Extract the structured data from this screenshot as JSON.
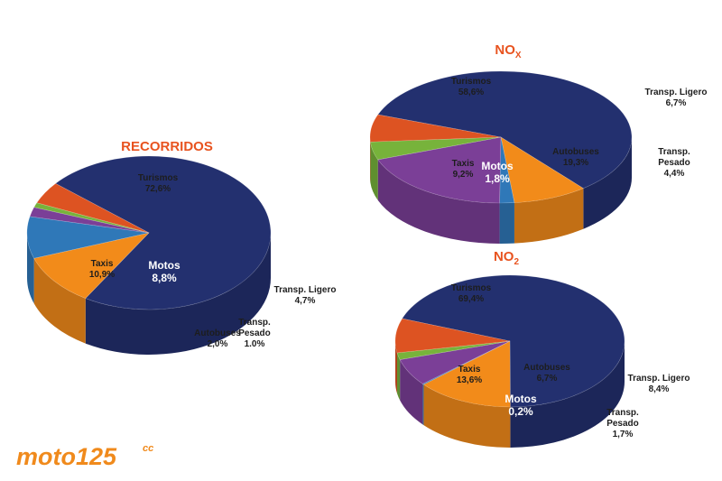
{
  "colors": {
    "Turismos": "#23306f",
    "Taxis": "#f28b1a",
    "Motos": "#2f78b8",
    "Autobuses": "#7b3f97",
    "Transp. Pesado": "#77b33b",
    "Transp. Ligero": "#dd5322",
    "title": "#e8531f"
  },
  "chart_data": [
    {
      "type": "pie",
      "title": "RECORRIDOS",
      "slices": [
        {
          "name": "Turismos",
          "value": 72.6,
          "label": "72,6%"
        },
        {
          "name": "Taxis",
          "value": 10.9,
          "label": "10,9%"
        },
        {
          "name": "Motos",
          "value": 8.8,
          "label": "8,8%"
        },
        {
          "name": "Autobuses",
          "value": 2.0,
          "label": "2,0%"
        },
        {
          "name": "Transp. Pesado",
          "value": 1.0,
          "label": "1.0%"
        },
        {
          "name": "Transp. Ligero",
          "value": 4.7,
          "label": "4,7%"
        }
      ]
    },
    {
      "type": "pie",
      "title": "NO",
      "title_sub": "X",
      "slices": [
        {
          "name": "Turismos",
          "value": 58.6,
          "label": "58,6%"
        },
        {
          "name": "Taxis",
          "value": 9.2,
          "label": "9,2%"
        },
        {
          "name": "Motos",
          "value": 1.8,
          "label": "1,8%"
        },
        {
          "name": "Autobuses",
          "value": 19.3,
          "label": "19,3%"
        },
        {
          "name": "Transp. Pesado",
          "value": 4.4,
          "label": "4,4%"
        },
        {
          "name": "Transp. Ligero",
          "value": 6.7,
          "label": "6,7%"
        }
      ]
    },
    {
      "type": "pie",
      "title": "NO",
      "title_sub": "2",
      "slices": [
        {
          "name": "Turismos",
          "value": 69.4,
          "label": "69,4%"
        },
        {
          "name": "Taxis",
          "value": 13.6,
          "label": "13,6%"
        },
        {
          "name": "Motos",
          "value": 0.2,
          "label": "0,2%"
        },
        {
          "name": "Autobuses",
          "value": 6.7,
          "label": "6,7%"
        },
        {
          "name": "Transp. Pesado",
          "value": 1.7,
          "label": "1,7%"
        },
        {
          "name": "Transp. Ligero",
          "value": 8.4,
          "label": "8,4%"
        }
      ]
    }
  ],
  "logo": {
    "text": "moto125",
    "sup": "cc"
  }
}
